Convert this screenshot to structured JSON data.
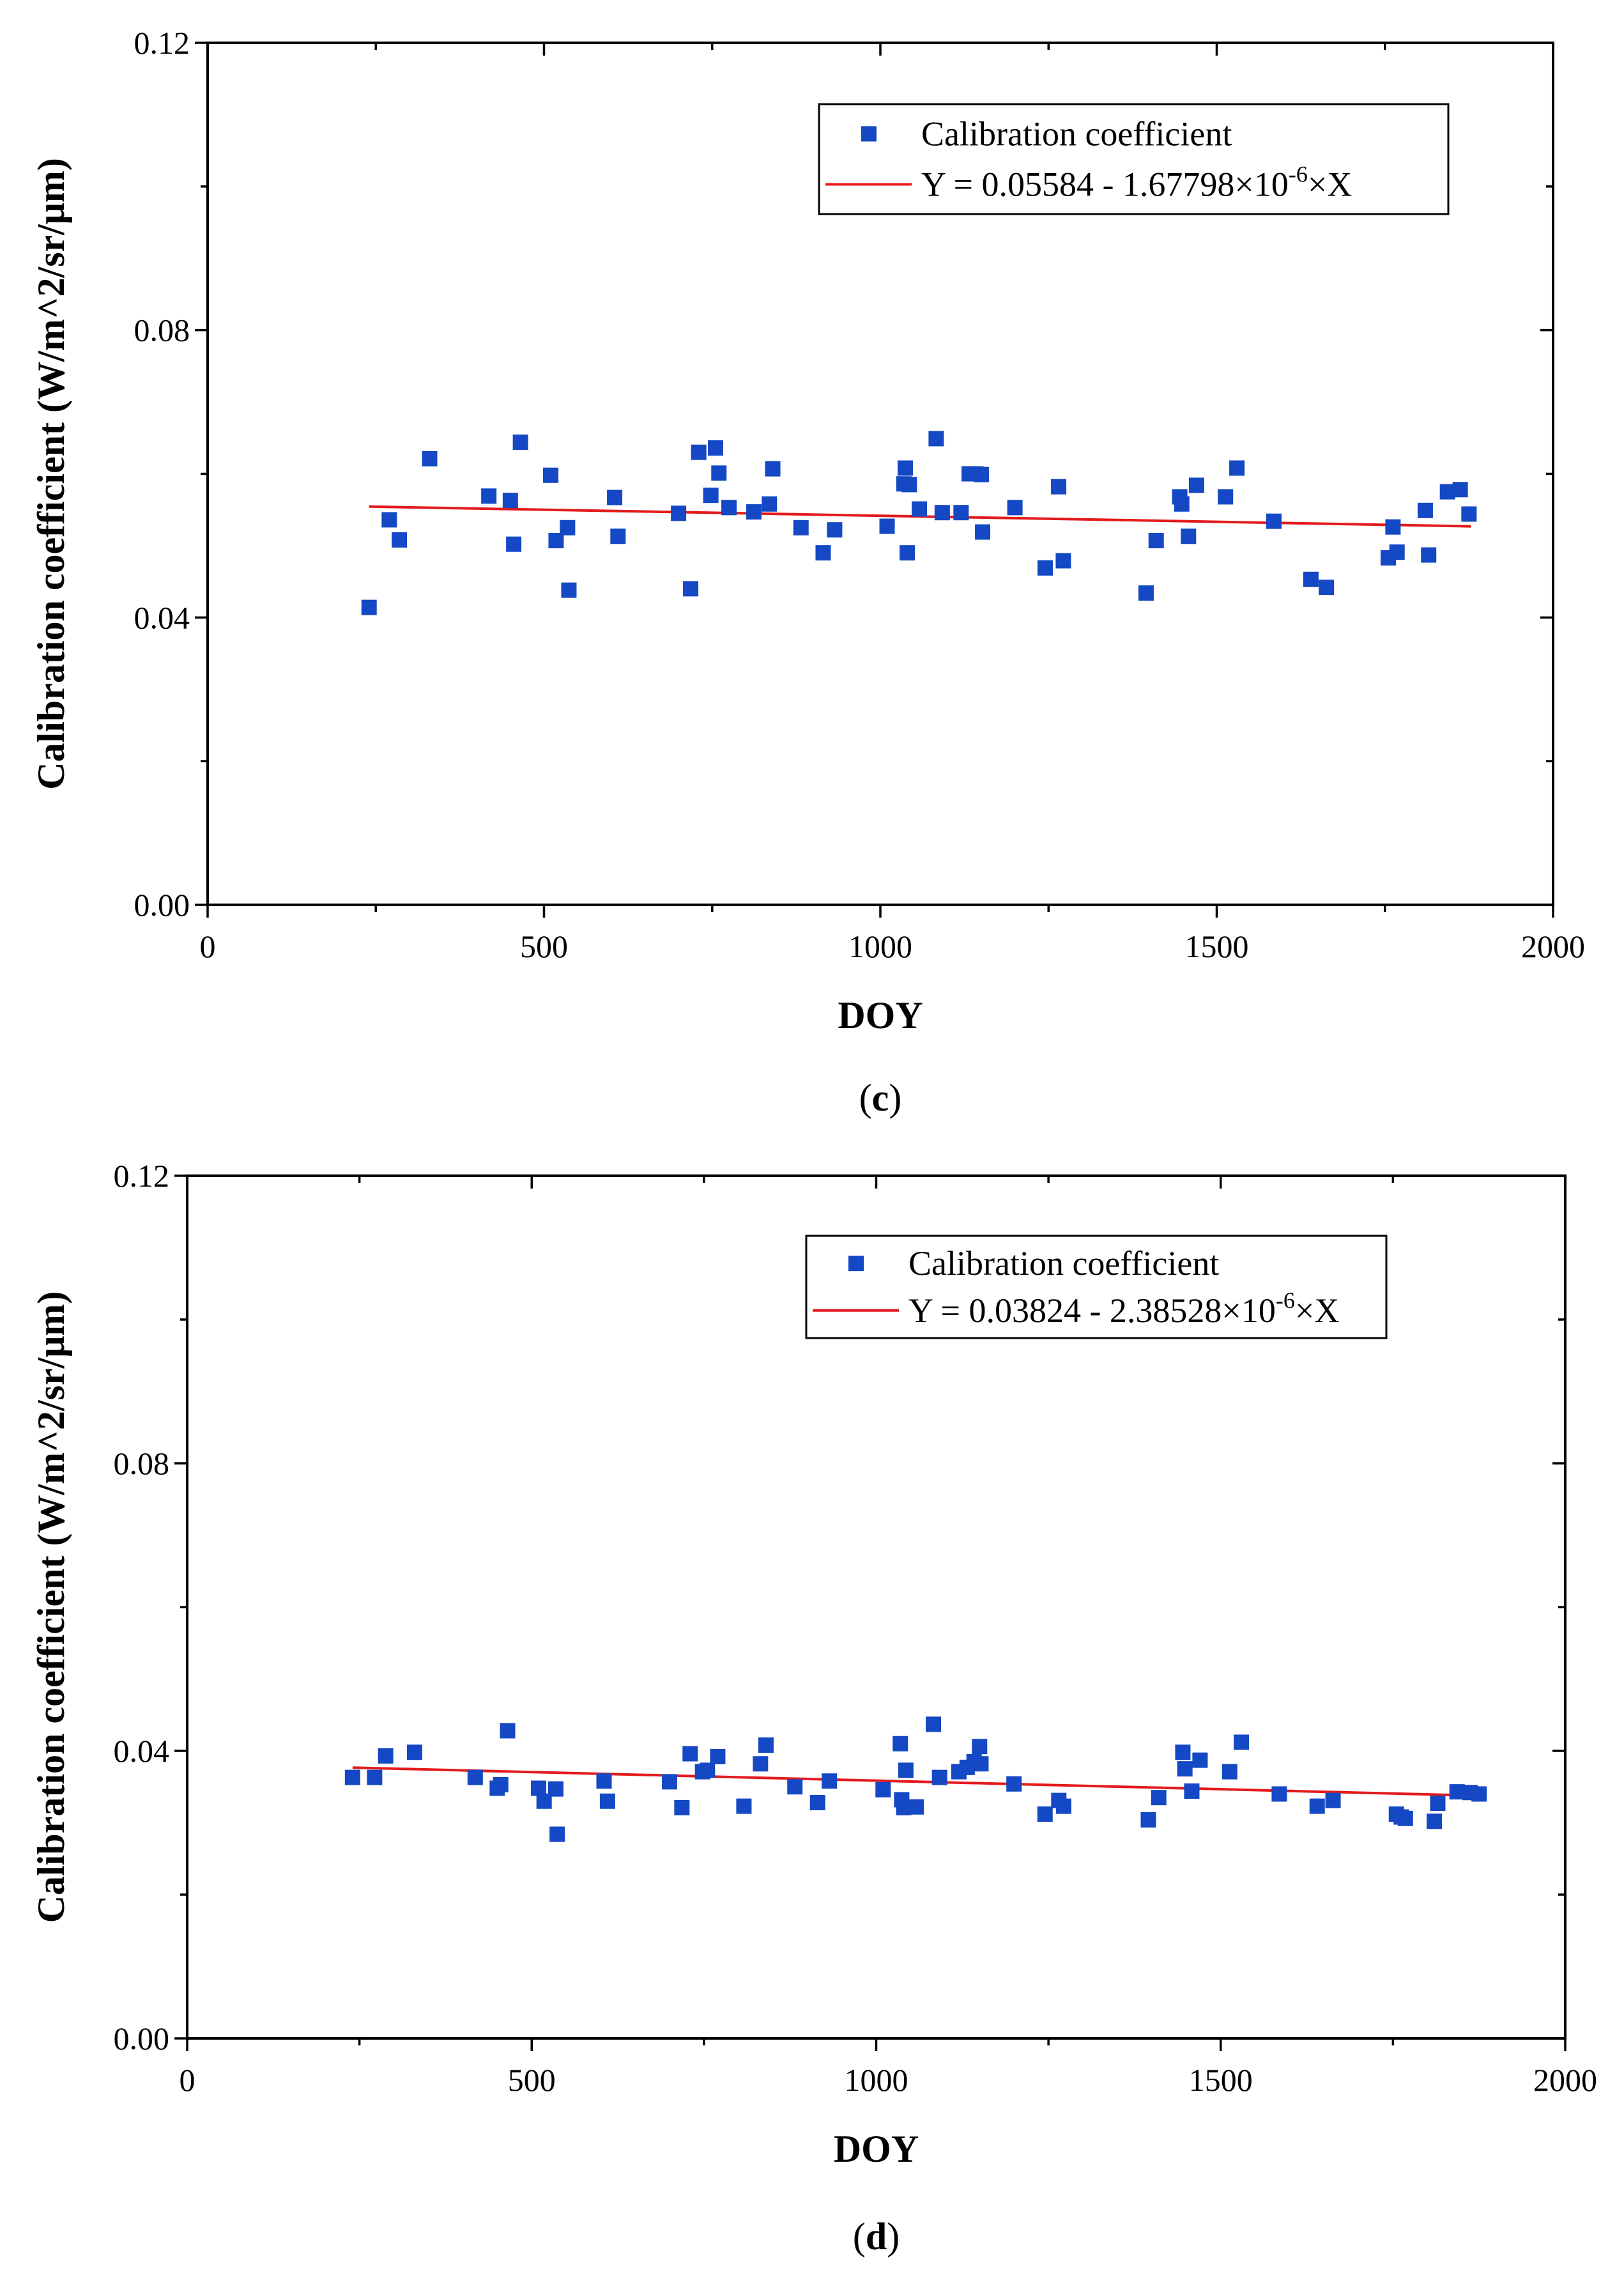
{
  "chart_data": [
    {
      "type": "scatter",
      "panel_label": "c",
      "xlabel": "DOY",
      "ylabel": "Calibration coefficient (W/m^2/sr/μm)",
      "xlim": [
        0,
        2000
      ],
      "ylim": [
        0,
        0.12
      ],
      "xticks": [
        0,
        500,
        1000,
        1500,
        2000
      ],
      "yticks": [
        0.0,
        0.04,
        0.08,
        0.12
      ],
      "xtick_labels": [
        "0",
        "500",
        "1000",
        "1500",
        "2000"
      ],
      "ytick_labels": [
        "0.00",
        "0.04",
        "0.08",
        "0.12"
      ],
      "legend": {
        "position": "top-right",
        "scatter_label": "Calibration coefficient",
        "fit_prefix": "Y = 0.05584 - 1.67798×10",
        "fit_exponent": "-6",
        "fit_suffix": "×X"
      },
      "fit": {
        "intercept": 0.05584,
        "slope": -1.67798e-06,
        "x_range": [
          240,
          1878
        ]
      },
      "series": [
        {
          "name": "Calibration coefficient",
          "color": "#1448c4",
          "x": [
            240,
            270,
            285,
            330,
            418,
            450,
            455,
            465,
            510,
            518,
            535,
            537,
            605,
            610,
            700,
            718,
            730,
            748,
            755,
            760,
            775,
            812,
            835,
            840,
            882,
            915,
            932,
            1010,
            1035,
            1037,
            1040,
            1043,
            1058,
            1083,
            1092,
            1120,
            1132,
            1142,
            1150,
            1152,
            1200,
            1245,
            1265,
            1272,
            1395,
            1410,
            1445,
            1448,
            1458,
            1470,
            1513,
            1530,
            1585,
            1640,
            1663,
            1755,
            1762,
            1768,
            1810,
            1815,
            1843,
            1862,
            1875
          ],
          "y": [
            0.0414,
            0.0536,
            0.0508,
            0.0621,
            0.0569,
            0.0563,
            0.0502,
            0.0644,
            0.0598,
            0.0507,
            0.0525,
            0.0438,
            0.0567,
            0.0513,
            0.0545,
            0.044,
            0.063,
            0.057,
            0.0636,
            0.0601,
            0.0553,
            0.0547,
            0.0558,
            0.0607,
            0.0525,
            0.049,
            0.0522,
            0.0527,
            0.0586,
            0.0608,
            0.049,
            0.0585,
            0.0551,
            0.0649,
            0.0546,
            0.0546,
            0.06,
            0.06,
            0.0599,
            0.0519,
            0.0553,
            0.0469,
            0.0582,
            0.0479,
            0.0434,
            0.0507,
            0.0568,
            0.0558,
            0.0513,
            0.0584,
            0.0568,
            0.0608,
            0.0534,
            0.0453,
            0.0442,
            0.0483,
            0.0526,
            0.0491,
            0.0549,
            0.0487,
            0.0575,
            0.0578,
            0.0544
          ]
        }
      ]
    },
    {
      "type": "scatter",
      "panel_label": "d",
      "xlabel": "DOY",
      "ylabel": "Calibration coefficient (W/m^2/sr/μm)",
      "xlim": [
        0,
        2000
      ],
      "ylim": [
        0,
        0.12
      ],
      "xticks": [
        0,
        500,
        1000,
        1500,
        2000
      ],
      "yticks": [
        0.0,
        0.04,
        0.08,
        0.12
      ],
      "xtick_labels": [
        "0",
        "500",
        "1000",
        "1500",
        "2000"
      ],
      "ytick_labels": [
        "0.00",
        "0.04",
        "0.08",
        "0.12"
      ],
      "legend": {
        "position": "top-right",
        "scatter_label": "Calibration coefficient",
        "fit_prefix": "Y = 0.03824 - 2.38528×10",
        "fit_exponent": "-6",
        "fit_suffix": "×X"
      },
      "fit": {
        "intercept": 0.03824,
        "slope": -2.38528e-06,
        "x_range": [
          240,
          1878
        ]
      },
      "series": [
        {
          "name": "Calibration coefficient",
          "color": "#1448c4",
          "x": [
            240,
            272,
            288,
            330,
            418,
            450,
            455,
            465,
            510,
            518,
            535,
            537,
            605,
            610,
            700,
            718,
            730,
            748,
            755,
            770,
            808,
            832,
            840,
            882,
            915,
            932,
            1010,
            1035,
            1037,
            1040,
            1043,
            1058,
            1083,
            1092,
            1120,
            1132,
            1142,
            1150,
            1152,
            1200,
            1245,
            1265,
            1272,
            1395,
            1410,
            1445,
            1448,
            1458,
            1470,
            1513,
            1530,
            1585,
            1640,
            1663,
            1755,
            1762,
            1768,
            1810,
            1815,
            1843,
            1862,
            1875
          ],
          "y": [
            0.0363,
            0.0363,
            0.0393,
            0.0398,
            0.0363,
            0.0348,
            0.0353,
            0.0428,
            0.0348,
            0.033,
            0.0347,
            0.0284,
            0.0358,
            0.033,
            0.0357,
            0.0321,
            0.0396,
            0.0371,
            0.0373,
            0.0392,
            0.0323,
            0.0382,
            0.0408,
            0.035,
            0.0328,
            0.0358,
            0.0346,
            0.041,
            0.0332,
            0.0321,
            0.0373,
            0.0322,
            0.0437,
            0.0363,
            0.0371,
            0.0377,
            0.0385,
            0.0406,
            0.0382,
            0.0354,
            0.0312,
            0.0331,
            0.0323,
            0.0304,
            0.0335,
            0.0398,
            0.0375,
            0.0344,
            0.0387,
            0.0371,
            0.0412,
            0.034,
            0.0323,
            0.0331,
            0.0312,
            0.0308,
            0.0306,
            0.0302,
            0.0327,
            0.0343,
            0.0342,
            0.034
          ]
        }
      ]
    }
  ]
}
